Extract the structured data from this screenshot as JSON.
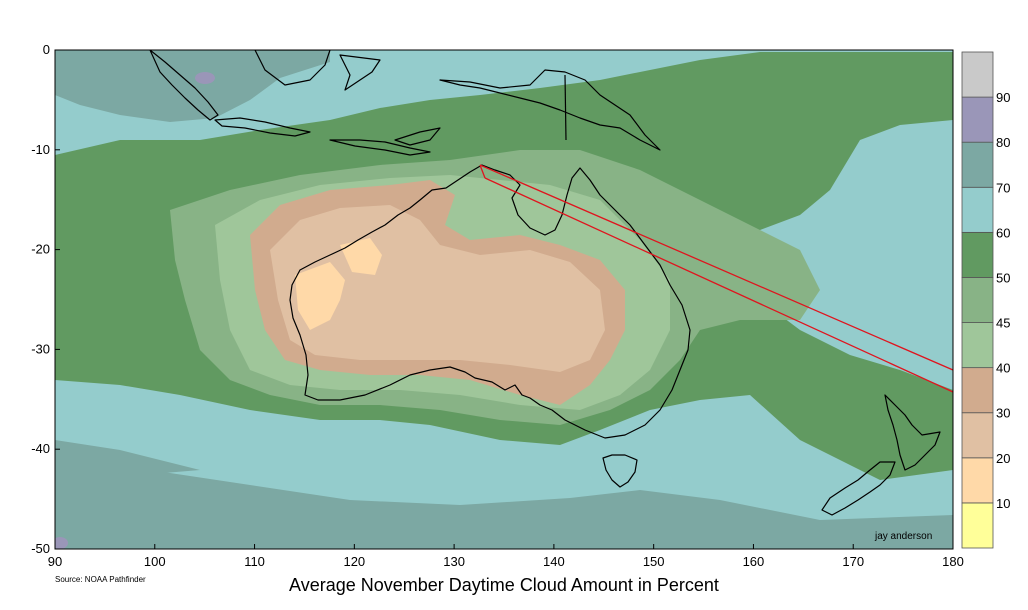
{
  "map": {
    "title": "Average November Daytime Cloud Amount in Percent",
    "source": "Source: NOAA Pathfinder",
    "credit": "jay anderson",
    "x_ticks": [
      "90",
      "100",
      "110",
      "120",
      "130",
      "140",
      "150",
      "160",
      "170",
      "180"
    ],
    "y_ticks": [
      "0",
      "-10",
      "-20",
      "-30",
      "-40",
      "-50"
    ],
    "x_range": [
      90,
      180
    ],
    "y_range": [
      -50,
      0
    ]
  },
  "legend": {
    "labels": [
      "10",
      "20",
      "30",
      "40",
      "45",
      "50",
      "60",
      "70",
      "80",
      "90"
    ],
    "bands": [
      {
        "color": "#ffff99"
      },
      {
        "color": "#ffd9a8"
      },
      {
        "color": "#e0c0a3"
      },
      {
        "color": "#d1ab8e"
      },
      {
        "color": "#9fc69a"
      },
      {
        "color": "#88b386"
      },
      {
        "color": "#619a61"
      },
      {
        "color": "#94cccc"
      },
      {
        "color": "#7ca8a3"
      },
      {
        "color": "#9a96b8"
      },
      {
        "color": "#c9c9c9"
      }
    ]
  },
  "colors": {
    "ocean_base": "#94cccc",
    "eclipse_track": "#e0141e"
  }
}
